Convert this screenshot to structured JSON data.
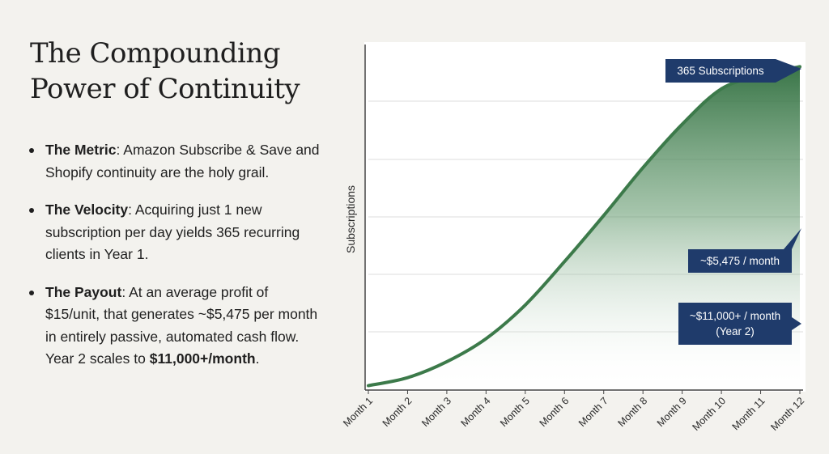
{
  "slide": {
    "title_line1": "The Compounding",
    "title_line2": "Power of Continuity",
    "bullets": [
      {
        "label": "The Metric",
        "text": ": Amazon Subscribe & Save and Shopify continuity are the holy grail."
      },
      {
        "label": "The Velocity",
        "text": ": Acquiring just 1 new subscription per day yields 365 recurring clients in Year 1."
      },
      {
        "label": "The Payout",
        "text_before": ": At an average profit of $15/unit, that generates ~$5,475 per month in entirely passive, automated cash flow. Year 2 scales to ",
        "text_bold": "$11,000+/month",
        "text_after": "."
      }
    ]
  },
  "chart_data": {
    "type": "area",
    "title": "",
    "xlabel": "",
    "ylabel": "Subscriptions",
    "categories": [
      "Month 1",
      "Month 2",
      "Month 3",
      "Month 4",
      "Month 5",
      "Month 6",
      "Month 7",
      "Month 8",
      "Month 9",
      "Month 10",
      "Month 11",
      "Month 12"
    ],
    "series": [
      {
        "name": "Subscriptions",
        "values": [
          5,
          14,
          32,
          58,
          96,
          145,
          197,
          251,
          300,
          340,
          355,
          365
        ]
      }
    ],
    "ylim": [
      0,
      390
    ],
    "grid": true,
    "annotations": [
      {
        "text": "365 Subscriptions",
        "at_category": "Month 12",
        "style": "callout-right-arrow"
      },
      {
        "text": "~$5,475 / month",
        "at_category": "Month 12",
        "style": "callout-up-arrow"
      },
      {
        "text_line1": "~$11,000+ / month",
        "text_line2": "(Year 2)",
        "at_category": "Month 12",
        "style": "callout-right-arrow"
      }
    ],
    "colors": {
      "line": "#3c7a4a",
      "fill": "#2f6e3e",
      "callout": "#1f3b6b",
      "grid": "#dddddd"
    }
  }
}
